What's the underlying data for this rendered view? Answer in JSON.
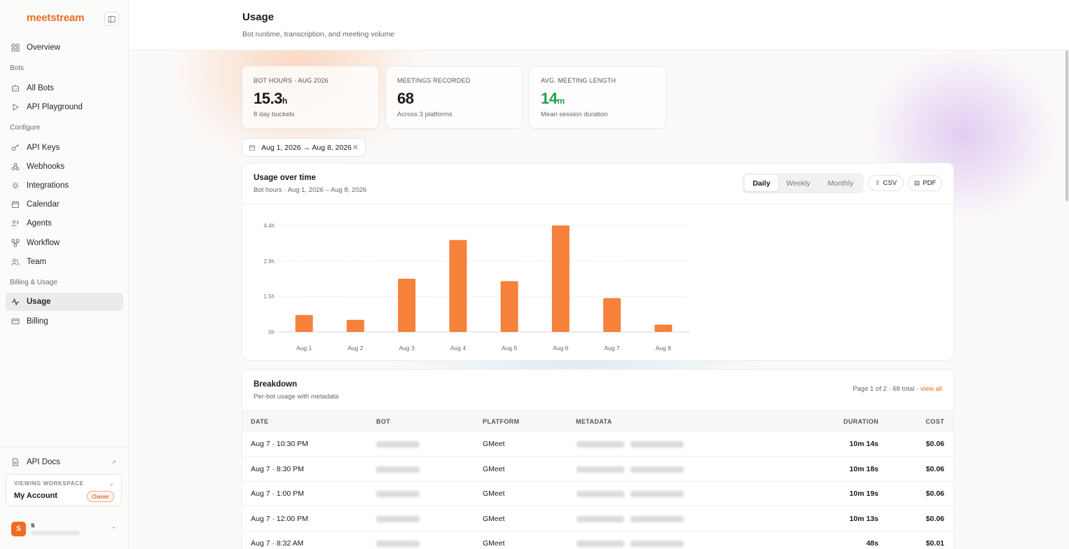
{
  "brand": "meetstream",
  "nav": {
    "overview": "Overview",
    "bots_section": "Bots",
    "all_bots": "All Bots",
    "api_playground": "API Playground",
    "configure_section": "Configure",
    "api_keys": "API Keys",
    "webhooks": "Webhooks",
    "integrations": "Integrations",
    "calendar": "Calendar",
    "agents": "Agents",
    "workflow": "Workflow",
    "team": "Team",
    "billing_section": "Billing & Usage",
    "usage": "Usage",
    "billing": "Billing",
    "api_docs": "API Docs"
  },
  "workspace": {
    "label": "VIEWING WORKSPACE",
    "name": "My Account",
    "role": "Owner"
  },
  "user": {
    "initial": "S",
    "name": "s"
  },
  "header": {
    "title": "Usage",
    "subtitle": "Bot runtime, transcription, and meeting volume"
  },
  "stats": [
    {
      "label": "BOT HOURS · AUG 2026",
      "value": "15.3",
      "unit": "h",
      "sub": "8 day buckets"
    },
    {
      "label": "MEETINGS RECORDED",
      "value": "68",
      "unit": "",
      "sub": "Across 3 platforms"
    },
    {
      "label": "AVG. MEETING LENGTH",
      "value": "14",
      "unit": "m",
      "sub": "Mean session duration"
    }
  ],
  "date_range": "Aug 1, 2026 → Aug 8, 2026",
  "usage_card": {
    "title": "Usage over time",
    "subtitle": "Bot hours · Aug 1, 2026 – Aug 8, 2026",
    "tabs": [
      "Daily",
      "Weekly",
      "Monthly"
    ],
    "active_tab": "Daily",
    "csv_label": "CSV",
    "pdf_label": "PDF"
  },
  "chart_data": {
    "type": "bar",
    "categories": [
      "Aug 1",
      "Aug 2",
      "Aug 3",
      "Aug 4",
      "Aug 5",
      "Aug 6",
      "Aug 7",
      "Aug 8"
    ],
    "values": [
      0.7,
      0.5,
      2.2,
      3.8,
      2.1,
      4.4,
      1.4,
      0.3
    ],
    "yticks": [
      "0h",
      "1.5h",
      "2.9h",
      "4.4h"
    ],
    "ytick_values": [
      0,
      1.47,
      2.93,
      4.4
    ],
    "ylim": [
      0,
      4.4
    ],
    "grid": true,
    "color": "#f5813a"
  },
  "breakdown": {
    "title": "Breakdown",
    "subtitle": "Per-bot usage with metadata",
    "page_info": "Page 1 of 2 · 68 total ·",
    "view_all": "view all",
    "columns": [
      "DATE",
      "BOT",
      "PLATFORM",
      "METADATA",
      "DURATION",
      "COST"
    ],
    "rows": [
      {
        "date": "Aug 7 · 10:30 PM",
        "platform": "GMeet",
        "duration": "10m 14s",
        "cost": "$0.06"
      },
      {
        "date": "Aug 7 · 8:30 PM",
        "platform": "GMeet",
        "duration": "10m 18s",
        "cost": "$0.06"
      },
      {
        "date": "Aug 7 · 1:00 PM",
        "platform": "GMeet",
        "duration": "10m 19s",
        "cost": "$0.06"
      },
      {
        "date": "Aug 7 · 12:00 PM",
        "platform": "GMeet",
        "duration": "10m 13s",
        "cost": "$0.06"
      },
      {
        "date": "Aug 7 · 8:32 AM",
        "platform": "GMeet",
        "duration": "48s",
        "cost": "$0.01"
      }
    ]
  },
  "colors": {
    "accent": "#ef6c22",
    "bar": "#f5813a",
    "positive": "#1fa34a"
  }
}
